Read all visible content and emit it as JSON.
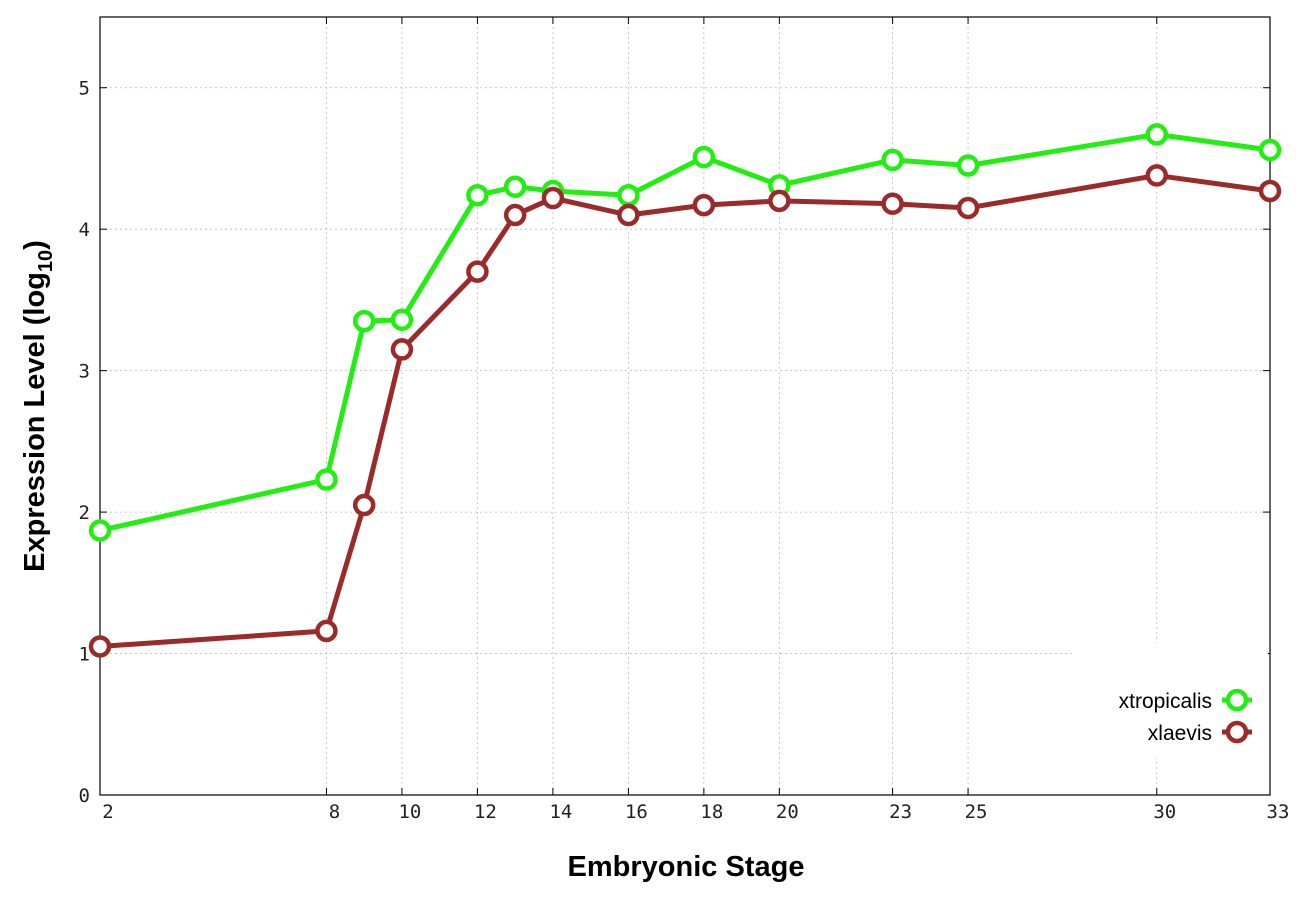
{
  "chart_data": {
    "type": "line",
    "xlabel": "Embryonic Stage",
    "ylabel_main": "Expression Level (log",
    "ylabel_sub": "10",
    "ylabel_close": ")",
    "x": [
      2,
      8,
      9,
      10,
      12,
      13,
      14,
      16,
      18,
      20,
      23,
      25,
      30,
      33
    ],
    "x_ticks": [
      2,
      8,
      10,
      12,
      14,
      16,
      18,
      20,
      23,
      25,
      30,
      33
    ],
    "y_ticks": [
      0,
      1,
      2,
      3,
      4,
      5
    ],
    "xlim": [
      2,
      33
    ],
    "ylim": [
      0,
      5.5
    ],
    "grid": true,
    "legend_position": "bottom-right",
    "series": [
      {
        "name": "xtropicalis",
        "color": "#22ee11",
        "values": [
          1.87,
          2.23,
          3.35,
          3.36,
          4.24,
          4.3,
          4.27,
          4.24,
          4.51,
          4.31,
          4.49,
          4.45,
          4.67,
          4.56
        ]
      },
      {
        "name": "xlaevis",
        "color": "#9b2a2a",
        "values": [
          1.05,
          1.16,
          2.05,
          3.15,
          3.7,
          4.1,
          4.22,
          4.1,
          4.17,
          4.2,
          4.18,
          4.15,
          4.38,
          4.27
        ]
      }
    ]
  }
}
